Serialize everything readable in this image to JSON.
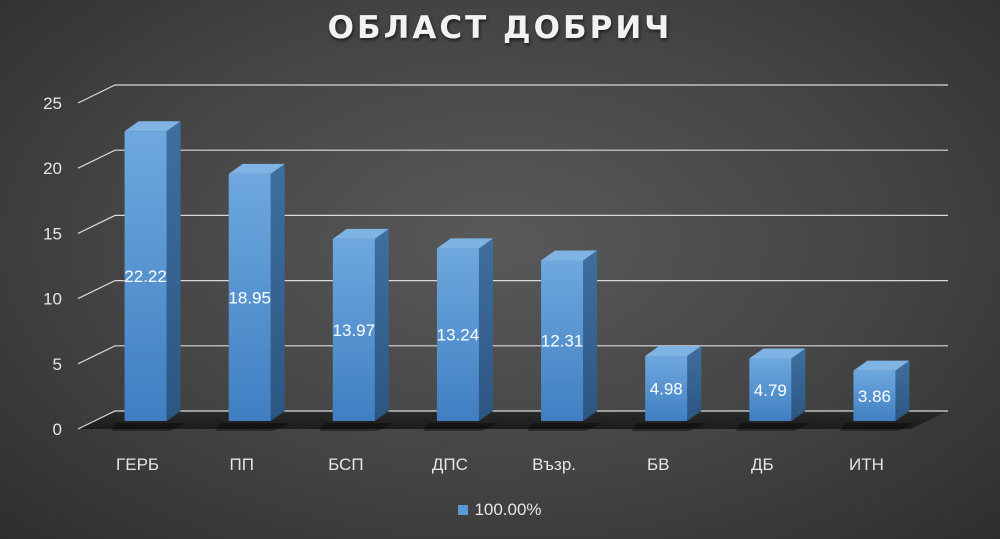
{
  "chart_data": {
    "type": "bar",
    "title": "ОБЛАСТ ДОБРИЧ",
    "categories": [
      "ГЕРБ",
      "ПП",
      "БСП",
      "ДПС",
      "Възр.",
      "БВ",
      "ДБ",
      "ИТН"
    ],
    "series": [
      {
        "name": "100.00%",
        "values": [
          22.22,
          18.95,
          13.97,
          13.24,
          12.31,
          4.98,
          4.79,
          3.86
        ]
      }
    ],
    "data_labels": [
      "22.22",
      "18.95",
      "13.97",
      "13.24",
      "12.31",
      "4.98",
      "4.79",
      "3.86"
    ],
    "y_ticks": [
      "0",
      "5",
      "10",
      "15",
      "20",
      "25"
    ],
    "ylim": [
      0,
      25
    ],
    "grid": true,
    "legend_position": "bottom",
    "style": "3d-column",
    "colors": {
      "bar": "#5b9bd5",
      "background": "#404040",
      "gridline": "#d9d9d9",
      "text": "#e6e6e6"
    }
  }
}
